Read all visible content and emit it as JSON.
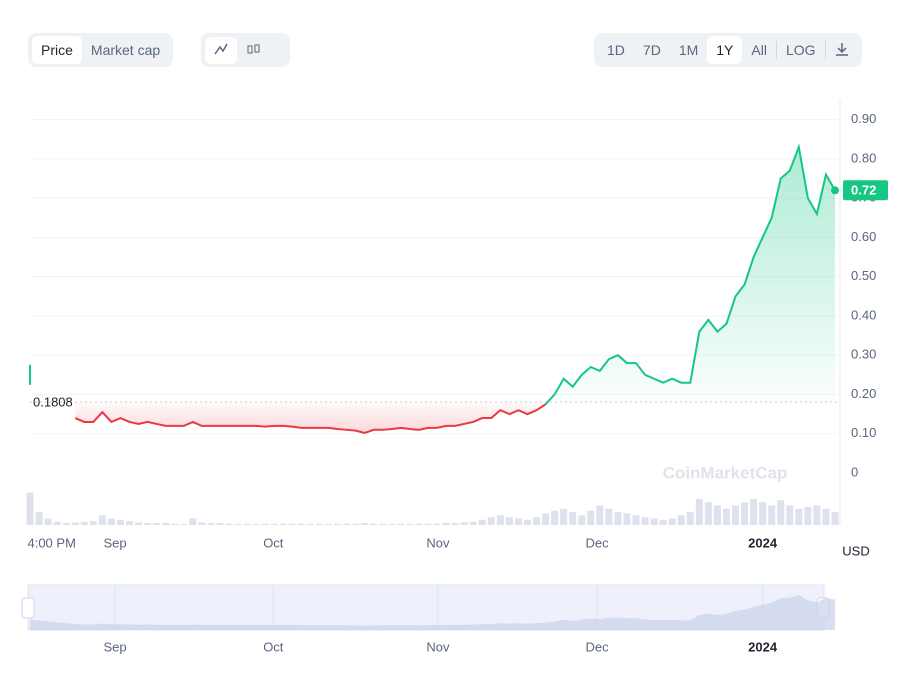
{
  "ui": {
    "left_tabs": [
      "Price",
      "Market cap"
    ],
    "ranges": [
      "1D",
      "7D",
      "1M",
      "1Y",
      "All"
    ],
    "log": "LOG",
    "currency": "USD",
    "watermark": "CoinMarketCap"
  },
  "chart_data": {
    "type": "line",
    "values": [
      0.25,
      null,
      null,
      null,
      null,
      0.14,
      0.13,
      0.13,
      0.155,
      0.13,
      0.14,
      0.13,
      0.125,
      0.13,
      0.125,
      0.12,
      0.12,
      0.12,
      0.13,
      0.12,
      0.12,
      0.12,
      0.12,
      0.12,
      0.12,
      0.12,
      0.118,
      0.12,
      0.12,
      0.118,
      0.115,
      0.115,
      0.115,
      0.115,
      0.112,
      0.11,
      0.108,
      0.102,
      0.11,
      0.11,
      0.112,
      0.115,
      0.112,
      0.11,
      0.115,
      0.115,
      0.12,
      0.12,
      0.125,
      0.13,
      0.14,
      0.14,
      0.16,
      0.15,
      0.16,
      0.15,
      0.16,
      0.175,
      0.2,
      0.24,
      0.22,
      0.25,
      0.27,
      0.26,
      0.29,
      0.3,
      0.28,
      0.28,
      0.25,
      0.24,
      0.23,
      0.24,
      0.23,
      0.23,
      0.36,
      0.39,
      0.36,
      0.38,
      0.45,
      0.48,
      0.55,
      0.6,
      0.65,
      0.75,
      0.77,
      0.83,
      0.7,
      0.66,
      0.76,
      0.72
    ],
    "volume": [
      50,
      20,
      10,
      5,
      3,
      4,
      5,
      6,
      15,
      10,
      8,
      6,
      4,
      3,
      3,
      3,
      2,
      2,
      10,
      4,
      3,
      3,
      2,
      2,
      2,
      2,
      2,
      2,
      2,
      2,
      2,
      2,
      2,
      2,
      2,
      2,
      2,
      3,
      2,
      2,
      2,
      2,
      2,
      2,
      2,
      2,
      3,
      3,
      4,
      5,
      8,
      12,
      15,
      12,
      10,
      8,
      12,
      18,
      22,
      25,
      20,
      15,
      22,
      30,
      25,
      20,
      18,
      15,
      12,
      10,
      8,
      10,
      15,
      20,
      40,
      35,
      30,
      25,
      30,
      35,
      40,
      35,
      30,
      38,
      30,
      25,
      28,
      30,
      25,
      20
    ],
    "xlim": [
      0,
      89
    ],
    "ylim": [
      0,
      0.95
    ],
    "y2lim": [
      0,
      100
    ],
    "xticks": [
      {
        "value": 2.4,
        "label": "4:00 PM"
      },
      {
        "value": 9.4,
        "label": "Sep"
      },
      {
        "value": 26.9,
        "label": "Oct"
      },
      {
        "value": 45.1,
        "label": "Nov"
      },
      {
        "value": 62.7,
        "label": "Dec"
      },
      {
        "value": 81,
        "label": "2024"
      }
    ],
    "yticks": [
      0,
      {
        "value": 0.1,
        "label": "0.10"
      },
      {
        "value": 0.2,
        "label": "0.20"
      },
      {
        "value": 0.3,
        "label": "0.30"
      },
      {
        "value": 0.4,
        "label": "0.40"
      },
      {
        "value": 0.5,
        "label": "0.50"
      },
      {
        "value": 0.6,
        "label": "0.60"
      },
      {
        "value": 0.7,
        "label": "0.70"
      },
      {
        "value": 0.8,
        "label": "0.80"
      },
      {
        "value": 0.9,
        "label": "0.90"
      }
    ],
    "baseline": 0.1808,
    "last_price": 0.72,
    "up_color": "#16c784",
    "down_color": "#ea3943",
    "grid": true
  }
}
